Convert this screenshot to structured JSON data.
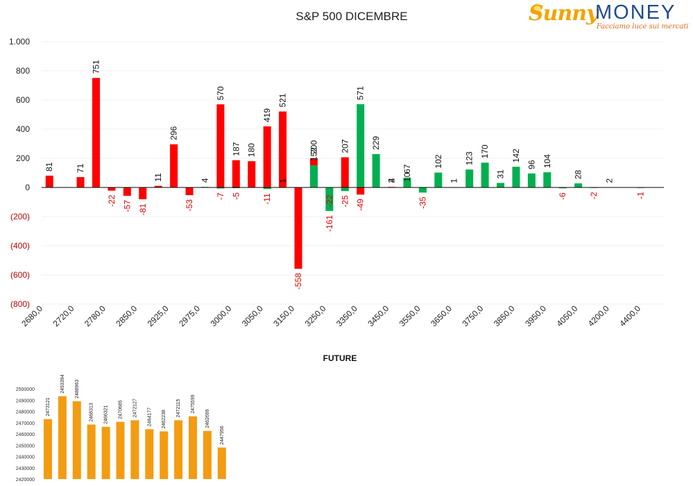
{
  "header": {
    "title": "S&P 500 DICEMBRE",
    "logo": {
      "word1": "Sunny",
      "word2": "MONEY",
      "tagline": "Facciamo luce sui mercati"
    }
  },
  "colors": {
    "calls": "#ff0000",
    "puts": "#00b050",
    "future": "#f39c12",
    "axis": "#000000",
    "grid": "#efefef"
  },
  "chart_data": [
    {
      "type": "bar",
      "title": "S&P 500 DICEMBRE",
      "ylim": [
        -800,
        1000
      ],
      "yticks": [
        -800,
        -600,
        -400,
        -200,
        0,
        200,
        400,
        600,
        800,
        1000
      ],
      "ytick_labels": [
        "(800)",
        "(600)",
        "(400)",
        "(200)",
        "0",
        "200",
        "400",
        "600",
        "800",
        "1.000"
      ],
      "grid": true,
      "x_tick_labels": [
        "2680,0",
        "2720,0",
        "2780,0",
        "2850,0",
        "2925,0",
        "2975,0",
        "3000,0",
        "3050,0",
        "3150,0",
        "3250,0",
        "3350,0",
        "3450,0",
        "3550,0",
        "3650,0",
        "3750,0",
        "3850,0",
        "3950,0",
        "4050,0",
        "4200,0",
        "4400,0"
      ],
      "series": [
        {
          "color": "#ff0000",
          "points": [
            {
              "slot": 0,
              "value": 81,
              "label": "81"
            },
            {
              "slot": 2,
              "value": 71,
              "label": "71"
            },
            {
              "slot": 3,
              "value": 751,
              "label": "751"
            },
            {
              "slot": 4,
              "value": -22,
              "label": "-22"
            },
            {
              "slot": 5,
              "value": -57,
              "label": "-57"
            },
            {
              "slot": 6,
              "value": -81,
              "label": "-81"
            },
            {
              "slot": 7,
              "value": 11,
              "label": "11"
            },
            {
              "slot": 8,
              "value": 296,
              "label": "296"
            },
            {
              "slot": 9,
              "value": -53,
              "label": "-53"
            },
            {
              "slot": 11,
              "value": 570,
              "label": "570"
            },
            {
              "slot": 12,
              "value": 187,
              "label": "187"
            },
            {
              "slot": 13,
              "value": 180,
              "label": "180"
            },
            {
              "slot": 14,
              "value": 419,
              "label": "419"
            },
            {
              "slot": 15,
              "value": 521,
              "label": "521"
            },
            {
              "slot": 16,
              "value": -558,
              "label": "-558"
            },
            {
              "slot": 17,
              "value": 200,
              "label": "200"
            },
            {
              "slot": 18,
              "value": -22,
              "label": "-22"
            },
            {
              "slot": 19,
              "value": 207,
              "label": "207"
            },
            {
              "slot": 20,
              "value": -49,
              "label": "-49"
            },
            {
              "slot": 22,
              "value": 4,
              "label": "4"
            },
            {
              "slot": 23,
              "value": 10,
              "label": "10"
            }
          ]
        },
        {
          "color": "#00b050",
          "points": [
            {
              "slot": 10,
              "value": 4,
              "label": "4"
            },
            {
              "slot": 11,
              "value": -7,
              "label": "-7"
            },
            {
              "slot": 12,
              "value": -5,
              "label": "-5"
            },
            {
              "slot": 14,
              "value": -11,
              "label": "-11"
            },
            {
              "slot": 15,
              "value": 1,
              "label": "1"
            },
            {
              "slot": 17,
              "value": 152,
              "label": "152"
            },
            {
              "slot": 18,
              "value": -161,
              "label": "-161"
            },
            {
              "slot": 19,
              "value": -25,
              "label": "-25"
            },
            {
              "slot": 20,
              "value": 571,
              "label": "571"
            },
            {
              "slot": 21,
              "value": 229,
              "label": "229"
            },
            {
              "slot": 22,
              "value": 2,
              "label": "2"
            },
            {
              "slot": 23,
              "value": 67,
              "label": "67"
            },
            {
              "slot": 24,
              "value": -35,
              "label": "-35"
            },
            {
              "slot": 25,
              "value": 102,
              "label": "102"
            },
            {
              "slot": 26,
              "value": 1,
              "label": "1"
            },
            {
              "slot": 27,
              "value": 123,
              "label": "123"
            },
            {
              "slot": 28,
              "value": 170,
              "label": "170"
            },
            {
              "slot": 29,
              "value": 31,
              "label": "31"
            },
            {
              "slot": 30,
              "value": 142,
              "label": "142"
            },
            {
              "slot": 31,
              "value": 96,
              "label": "96"
            },
            {
              "slot": 32,
              "value": 104,
              "label": "104"
            },
            {
              "slot": 33,
              "value": -6,
              "label": "-6"
            },
            {
              "slot": 34,
              "value": 28,
              "label": "28"
            },
            {
              "slot": 35,
              "value": -2,
              "label": "-2"
            },
            {
              "slot": 36,
              "value": 2,
              "label": "2"
            },
            {
              "slot": 38,
              "value": -1,
              "label": "-1"
            }
          ]
        }
      ]
    },
    {
      "type": "bar",
      "title": "FUTURE",
      "ylim": [
        2420000,
        2500000
      ],
      "yticks": [
        2420000,
        2430000,
        2440000,
        2450000,
        2460000,
        2470000,
        2480000,
        2490000,
        2500000
      ],
      "ytick_labels": [
        "2420000",
        "2430000",
        "2440000",
        "2450000",
        "2460000",
        "2470000",
        "2480000",
        "2490000",
        "2500000"
      ],
      "color": "#f39c12",
      "values": [
        2473121,
        2493394,
        2488963,
        2468313,
        2466321,
        2470685,
        2472127,
        2464177,
        2462238,
        2472115,
        2475599,
        2462699,
        2447956
      ],
      "labels": [
        "2473121",
        "2493394",
        "2488963",
        "2468313",
        "2466321",
        "2470685",
        "2472127",
        "2464177",
        "2462238",
        "2472115",
        "2475599",
        "2462699",
        "2447956"
      ]
    }
  ]
}
